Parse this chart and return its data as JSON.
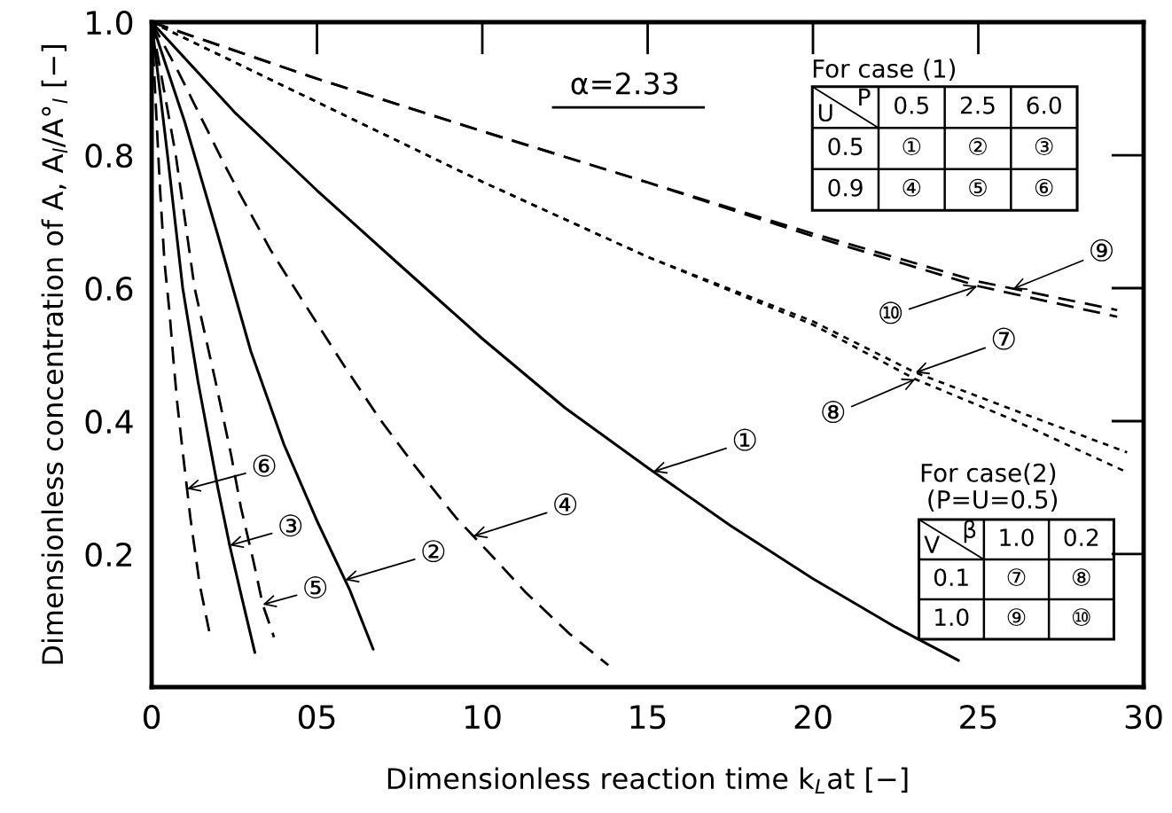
{
  "chart_data": {
    "type": "line",
    "xlabel": "Dimensionless reaction time k$_{L}$at [−]",
    "ylabel": "Dimensionless concentration of A, A$_{l}$/A°$_{l}$ [−]",
    "xlim": [
      0,
      30
    ],
    "ylim": [
      0,
      1.0
    ],
    "xticks": [
      0,
      {
        "value": 5,
        "label": "05"
      },
      10,
      15,
      20,
      25,
      30
    ],
    "yticks": [
      {
        "value": 0.2,
        "label": "0.2"
      },
      {
        "value": 0.4,
        "label": "0.4"
      },
      {
        "value": 0.6,
        "label": "0.6"
      },
      {
        "value": 0.8,
        "label": "0.8"
      },
      {
        "value": 1.0,
        "label": "1.0"
      }
    ],
    "series": [
      {
        "color": "#000000",
        "line_style": "solid",
        "x": [
          0,
          2.5,
          5,
          7.5,
          10,
          12.5,
          15,
          17.5,
          20,
          22.5,
          24.4
        ],
        "values": [
          1.0,
          0.865,
          0.747,
          0.635,
          0.524,
          0.42,
          0.33,
          0.243,
          0.163,
          0.09,
          0.04
        ]
      },
      {
        "color": "#000000",
        "line_style": "solid",
        "x": [
          0,
          1,
          2,
          3,
          4,
          5,
          6,
          6.7
        ],
        "values": [
          1.0,
          0.85,
          0.68,
          0.505,
          0.365,
          0.25,
          0.145,
          0.057
        ]
      },
      {
        "color": "#000000",
        "line_style": "solid",
        "x": [
          0,
          0.48,
          0.94,
          1.4,
          2.0,
          2.36,
          2.7,
          3.12
        ],
        "values": [
          1.0,
          0.8,
          0.6,
          0.46,
          0.3,
          0.213,
          0.14,
          0.052
        ]
      },
      {
        "color": "#000000",
        "line_style": "dashed",
        "x": [
          0,
          0.78,
          1.26,
          2.2,
          2.6,
          3.6,
          4.08,
          5.18,
          5.85,
          6.9,
          8.0,
          9.2,
          10.43,
          11.3,
          12.64,
          13.81
        ],
        "values": [
          1.0,
          0.928,
          0.88,
          0.786,
          0.748,
          0.657,
          0.619,
          0.533,
          0.481,
          0.403,
          0.33,
          0.255,
          0.19,
          0.143,
          0.08,
          0.033
        ]
      },
      {
        "color": "#000000",
        "line_style": "dashed",
        "x": [
          0,
          0.73,
          1.3,
          1.93,
          2.4,
          2.7,
          3.08,
          3.36,
          3.7
        ],
        "values": [
          1.0,
          0.8,
          0.6,
          0.46,
          0.35,
          0.27,
          0.189,
          0.124,
          0.075
        ]
      },
      {
        "color": "#000000",
        "line_style": "dashed",
        "x": [
          0,
          0.25,
          0.39,
          0.54,
          0.67,
          0.78,
          0.97,
          1.17,
          1.45,
          1.74
        ],
        "values": [
          1.0,
          0.752,
          0.638,
          0.564,
          0.485,
          0.424,
          0.341,
          0.255,
          0.155,
          0.084
        ]
      },
      {
        "color": "#000000",
        "line_style": "dotted",
        "x": [
          0,
          5,
          10,
          15,
          20,
          23.1,
          26,
          29.5
        ],
        "values": [
          1.0,
          0.88,
          0.76,
          0.647,
          0.55,
          0.473,
          0.418,
          0.353
        ]
      },
      {
        "color": "#000000",
        "line_style": "dotted",
        "x": [
          0,
          5,
          10,
          15,
          20,
          23.1,
          26,
          29.5
        ],
        "values": [
          1.0,
          0.88,
          0.76,
          0.647,
          0.545,
          0.463,
          0.403,
          0.323
        ]
      },
      {
        "color": "#000000",
        "line_style": "dashed",
        "x": [
          0,
          5,
          10,
          15,
          20,
          25,
          29.2
        ],
        "values": [
          1.0,
          0.915,
          0.836,
          0.759,
          0.682,
          0.61,
          0.567
        ]
      },
      {
        "color": "#000000",
        "line_style": "dashed",
        "x": [
          0,
          5,
          10,
          15,
          20,
          25,
          29.2
        ],
        "values": [
          1.0,
          0.915,
          0.836,
          0.759,
          0.678,
          0.603,
          0.557
        ]
      }
    ],
    "annotations": [
      "α=2.33",
      "For case (1)",
      "U",
      "P",
      "0.5",
      "2.5",
      "6.0",
      "0.5",
      "①",
      "②",
      "③",
      "0.9",
      "④",
      "⑤",
      "⑥",
      "For case(2)",
      "(P=U=0.5)",
      "V",
      "β",
      "1.0",
      "0.2",
      "0.1",
      "⑦",
      "⑧",
      "1.0",
      "⑨",
      "⑩",
      {
        "text": "①",
        "x": 15.17,
        "y": 0.324
      },
      {
        "text": "②",
        "x": 5.85,
        "y": 0.161
      },
      {
        "text": "③",
        "x": 2.36,
        "y": 0.213
      },
      {
        "text": "④",
        "x": 9.73,
        "y": 0.227
      },
      {
        "text": "⑤",
        "x": 3.36,
        "y": 0.124
      },
      {
        "text": "⑥",
        "x": 1.07,
        "y": 0.298
      },
      {
        "text": "⑦",
        "x": 23.1,
        "y": 0.473
      },
      {
        "text": "⑧",
        "x": 23.1,
        "y": 0.463
      },
      {
        "text": "⑨",
        "x": 26.05,
        "y": 0.599
      },
      {
        "text": "⑩",
        "x": 24.97,
        "y": 0.603
      }
    ]
  }
}
